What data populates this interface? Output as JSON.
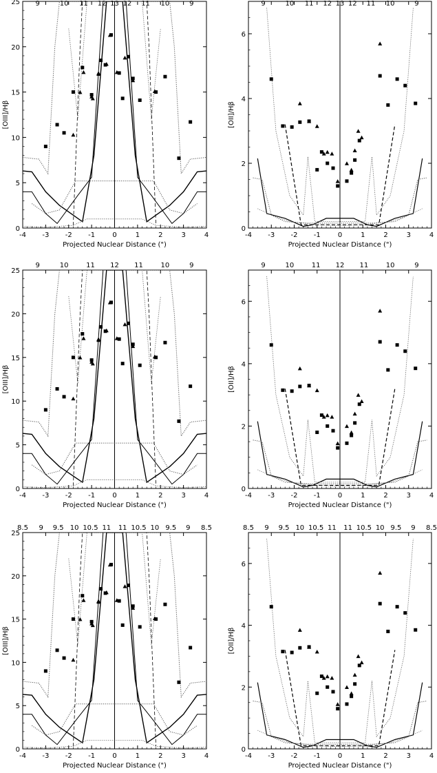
{
  "chart_data": [
    {
      "type": "scatter",
      "panel": "row1-left",
      "xlabel": "Projected Nuclear Distance (\")",
      "ylabel": "[OIII]/Hβ",
      "xlim": [
        -4,
        4
      ],
      "ylim": [
        0,
        25
      ],
      "xticks": [
        -4,
        -3,
        -2,
        -1,
        0,
        1,
        2,
        3,
        4
      ],
      "yticks": [
        0,
        5,
        10,
        15,
        20,
        25
      ],
      "top_axis_labels": [
        {
          "x": -3.35,
          "label": "9"
        },
        {
          "x": -2.2,
          "label": "10"
        },
        {
          "x": -1.35,
          "label": "11"
        },
        {
          "x": -0.55,
          "label": "12"
        },
        {
          "x": 0,
          "label": "13"
        },
        {
          "x": 0.55,
          "label": "12"
        },
        {
          "x": 1.35,
          "label": "11"
        },
        {
          "x": 2.2,
          "label": "10"
        },
        {
          "x": 3.35,
          "label": "9"
        }
      ],
      "series": [
        {
          "marker": "square",
          "x": [
            -3.0,
            -2.5,
            -2.2,
            -1.8,
            -1.4,
            -1.0,
            -0.6,
            -0.4,
            -0.15,
            0.2,
            0.35,
            0.6,
            0.8,
            1.1,
            1.8,
            2.2,
            2.8,
            3.3
          ],
          "y": [
            9.0,
            11.4,
            10.5,
            15.0,
            17.7,
            14.7,
            18.5,
            18.0,
            21.3,
            17.1,
            14.3,
            18.9,
            16.5,
            14.1,
            15.0,
            16.7,
            7.7,
            11.7
          ]
        },
        {
          "marker": "triangle",
          "x": [
            -1.8,
            -1.5,
            -1.35,
            -1.0,
            -0.7,
            -0.2,
            0.1,
            0.45,
            0.8,
            1.75
          ],
          "y": [
            10.3,
            15.0,
            17.2,
            14.5,
            17.0,
            21.3,
            17.2,
            18.8,
            16.3,
            15.1
          ]
        },
        {
          "marker": "triangle",
          "x": [
            -0.95,
            -0.7,
            -0.35
          ],
          "y": [
            14.3,
            17.1,
            18.1
          ]
        }
      ]
    },
    {
      "type": "scatter",
      "panel": "row1-right",
      "xlabel": "Projected Nuclear Distance (\")",
      "ylabel": "[OII]/Hβ",
      "xlim": [
        -4,
        4
      ],
      "ylim": [
        0,
        7
      ],
      "xticks": [
        -4,
        -3,
        -2,
        -1,
        0,
        1,
        2,
        3,
        4
      ],
      "yticks": [
        0,
        2,
        4,
        6
      ],
      "top_axis_labels": [
        {
          "x": -3.35,
          "label": "9"
        },
        {
          "x": -2.2,
          "label": "10"
        },
        {
          "x": -1.35,
          "label": "11"
        },
        {
          "x": -0.55,
          "label": "12"
        },
        {
          "x": 0,
          "label": "13"
        },
        {
          "x": 0.55,
          "label": "12"
        },
        {
          "x": 1.35,
          "label": "11"
        },
        {
          "x": 2.2,
          "label": "10"
        },
        {
          "x": 3.35,
          "label": "9"
        }
      ],
      "series": [
        {
          "marker": "square",
          "x": [
            -3.0,
            -2.5,
            -2.1,
            -1.75,
            -1.35,
            -1.0,
            -0.8,
            -0.55,
            -0.3,
            -0.1,
            0.3,
            0.5,
            0.65,
            0.85,
            1.75,
            2.1,
            2.5,
            2.85,
            3.3
          ],
          "y": [
            4.6,
            3.15,
            3.12,
            3.27,
            3.3,
            1.8,
            2.35,
            2.0,
            1.85,
            1.3,
            1.45,
            1.7,
            2.1,
            2.7,
            4.7,
            3.8,
            4.6,
            4.4,
            3.85
          ]
        },
        {
          "marker": "triangle",
          "x": [
            -1.75,
            -1.35,
            -1.0,
            -0.7,
            -0.55,
            -0.35,
            -0.1,
            0.3,
            0.5,
            0.65,
            0.8,
            0.95,
            1.75
          ],
          "y": [
            3.85,
            3.3,
            3.15,
            2.3,
            2.35,
            2.3,
            1.45,
            2.0,
            1.8,
            2.4,
            3.0,
            2.8,
            5.7
          ]
        }
      ]
    },
    {
      "type": "scatter",
      "panel": "row2-left",
      "xlabel": "Projected Nuclear Distance (\")",
      "ylabel": "[OIII]/Hβ",
      "xlim": [
        -4,
        4
      ],
      "ylim": [
        0,
        25
      ],
      "xticks": [
        -4,
        -3,
        -2,
        -1,
        0,
        1,
        2,
        3,
        4
      ],
      "yticks": [
        0,
        5,
        10,
        15,
        20,
        25
      ],
      "top_axis_labels": [
        {
          "x": -3.35,
          "label": "9"
        },
        {
          "x": -2.2,
          "label": "10"
        },
        {
          "x": -1.05,
          "label": "11"
        },
        {
          "x": 0,
          "label": "12"
        },
        {
          "x": 1.05,
          "label": "11"
        },
        {
          "x": 2.2,
          "label": "10"
        },
        {
          "x": 3.35,
          "label": "9"
        }
      ],
      "series": [
        {
          "marker": "square",
          "x": [
            -3.0,
            -2.5,
            -2.2,
            -1.8,
            -1.4,
            -1.0,
            -0.6,
            -0.4,
            -0.15,
            0.2,
            0.35,
            0.6,
            0.8,
            1.1,
            1.8,
            2.2,
            2.8,
            3.3
          ],
          "y": [
            9.0,
            11.4,
            10.5,
            15.0,
            17.7,
            14.7,
            18.5,
            18.0,
            21.3,
            17.1,
            14.3,
            18.9,
            16.5,
            14.1,
            15.0,
            16.7,
            7.7,
            11.7
          ]
        },
        {
          "marker": "triangle",
          "x": [
            -1.8,
            -1.5,
            -1.35,
            -1.0,
            -0.7,
            -0.2,
            0.1,
            0.45,
            0.8,
            1.75
          ],
          "y": [
            10.3,
            15.0,
            17.2,
            14.5,
            17.0,
            21.3,
            17.2,
            18.8,
            16.3,
            15.1
          ]
        },
        {
          "marker": "triangle",
          "x": [
            -0.95,
            -0.7,
            -0.35
          ],
          "y": [
            14.3,
            17.1,
            18.1
          ]
        }
      ]
    },
    {
      "type": "scatter",
      "panel": "row2-right",
      "xlabel": "Projected Nuclear Distance (\")",
      "ylabel": "[OII]/Hβ",
      "xlim": [
        -4,
        4
      ],
      "ylim": [
        0,
        7
      ],
      "xticks": [
        -4,
        -3,
        -2,
        -1,
        0,
        1,
        2,
        3,
        4
      ],
      "yticks": [
        0,
        2,
        4,
        6
      ],
      "top_axis_labels": [
        {
          "x": -3.35,
          "label": "9"
        },
        {
          "x": -2.2,
          "label": "10"
        },
        {
          "x": -1.05,
          "label": "11"
        },
        {
          "x": 0,
          "label": "12"
        },
        {
          "x": 1.05,
          "label": "11"
        },
        {
          "x": 2.2,
          "label": "10"
        },
        {
          "x": 3.35,
          "label": "9"
        }
      ],
      "series": [
        {
          "marker": "square",
          "x": [
            -3.0,
            -2.5,
            -2.1,
            -1.75,
            -1.35,
            -1.0,
            -0.8,
            -0.55,
            -0.3,
            -0.1,
            0.3,
            0.5,
            0.65,
            0.85,
            1.75,
            2.1,
            2.5,
            2.85,
            3.3
          ],
          "y": [
            4.6,
            3.15,
            3.12,
            3.27,
            3.3,
            1.8,
            2.35,
            2.0,
            1.85,
            1.3,
            1.45,
            1.7,
            2.1,
            2.7,
            4.7,
            3.8,
            4.6,
            4.4,
            3.85
          ]
        },
        {
          "marker": "triangle",
          "x": [
            -1.75,
            -1.35,
            -1.0,
            -0.7,
            -0.55,
            -0.35,
            -0.1,
            0.3,
            0.5,
            0.65,
            0.8,
            0.95,
            1.75
          ],
          "y": [
            3.85,
            3.3,
            3.15,
            2.3,
            2.35,
            2.3,
            1.45,
            2.0,
            1.8,
            2.4,
            3.0,
            2.8,
            5.7
          ]
        }
      ]
    },
    {
      "type": "scatter",
      "panel": "row3-left",
      "xlabel": "Projected Nuclear Distance (\")",
      "ylabel": "[OIII]/Hβ",
      "xlim": [
        -4,
        4
      ],
      "ylim": [
        0,
        25
      ],
      "xticks": [
        -4,
        -3,
        -2,
        -1,
        0,
        1,
        2,
        3,
        4
      ],
      "yticks": [
        0,
        5,
        10,
        15,
        20,
        25
      ],
      "top_axis_labels": [
        {
          "x": -4,
          "label": "8.5"
        },
        {
          "x": -3.2,
          "label": "9"
        },
        {
          "x": -2.45,
          "label": "9.5"
        },
        {
          "x": -1.75,
          "label": "10"
        },
        {
          "x": -1.05,
          "label": "10.5"
        },
        {
          "x": -0.35,
          "label": "11"
        },
        {
          "x": 0.35,
          "label": "11"
        },
        {
          "x": 1.05,
          "label": "10.5"
        },
        {
          "x": 1.75,
          "label": "10"
        },
        {
          "x": 2.45,
          "label": "9.5"
        },
        {
          "x": 3.2,
          "label": "9"
        },
        {
          "x": 4,
          "label": "8.5"
        }
      ],
      "series": [
        {
          "marker": "square",
          "x": [
            -3.0,
            -2.5,
            -2.2,
            -1.8,
            -1.4,
            -1.0,
            -0.6,
            -0.4,
            -0.15,
            0.2,
            0.35,
            0.6,
            0.8,
            1.1,
            1.8,
            2.2,
            2.8,
            3.3
          ],
          "y": [
            9.0,
            11.4,
            10.5,
            15.0,
            17.7,
            14.7,
            18.5,
            18.0,
            21.3,
            17.1,
            14.3,
            18.9,
            16.5,
            14.1,
            15.0,
            16.7,
            7.7,
            11.7
          ]
        },
        {
          "marker": "triangle",
          "x": [
            -1.8,
            -1.5,
            -1.35,
            -1.0,
            -0.7,
            -0.2,
            0.1,
            0.45,
            0.8,
            1.75
          ],
          "y": [
            10.3,
            15.0,
            17.2,
            14.5,
            17.0,
            21.3,
            17.2,
            18.8,
            16.3,
            15.1
          ]
        },
        {
          "marker": "triangle",
          "x": [
            -0.95,
            -0.7,
            -0.35
          ],
          "y": [
            14.3,
            17.1,
            18.1
          ]
        }
      ]
    },
    {
      "type": "scatter",
      "panel": "row3-right",
      "xlabel": "Projected Nuclear Distance (\")",
      "ylabel": "[OII]/Hβ",
      "xlim": [
        -4,
        4
      ],
      "ylim": [
        0,
        7
      ],
      "xticks": [
        -4,
        -3,
        -2,
        -1,
        0,
        1,
        2,
        3,
        4
      ],
      "yticks": [
        0,
        2,
        4,
        6
      ],
      "top_axis_labels": [
        {
          "x": -4,
          "label": "8.5"
        },
        {
          "x": -3.2,
          "label": "9"
        },
        {
          "x": -2.45,
          "label": "9.5"
        },
        {
          "x": -1.75,
          "label": "10"
        },
        {
          "x": -1.05,
          "label": "10.5"
        },
        {
          "x": -0.35,
          "label": "11"
        },
        {
          "x": 0.35,
          "label": "11"
        },
        {
          "x": 1.05,
          "label": "10.5"
        },
        {
          "x": 1.75,
          "label": "10"
        },
        {
          "x": 2.45,
          "label": "9.5"
        },
        {
          "x": 3.2,
          "label": "9"
        },
        {
          "x": 4,
          "label": "8.5"
        }
      ],
      "series": [
        {
          "marker": "square",
          "x": [
            -3.0,
            -2.5,
            -2.1,
            -1.75,
            -1.35,
            -1.0,
            -0.8,
            -0.55,
            -0.3,
            -0.1,
            0.3,
            0.5,
            0.65,
            0.85,
            1.75,
            2.1,
            2.5,
            2.85,
            3.3
          ],
          "y": [
            4.6,
            3.15,
            3.12,
            3.27,
            3.3,
            1.8,
            2.35,
            2.0,
            1.85,
            1.3,
            1.45,
            1.7,
            2.1,
            2.7,
            4.7,
            3.8,
            4.6,
            4.4,
            3.85
          ]
        },
        {
          "marker": "triangle",
          "x": [
            -1.75,
            -1.35,
            -1.0,
            -0.7,
            -0.55,
            -0.35,
            -0.1,
            0.3,
            0.5,
            0.65,
            0.8,
            0.95,
            1.75
          ],
          "y": [
            3.85,
            3.3,
            3.15,
            2.3,
            2.35,
            2.3,
            1.45,
            2.0,
            1.8,
            2.4,
            3.0,
            2.8,
            5.7
          ]
        }
      ]
    }
  ]
}
